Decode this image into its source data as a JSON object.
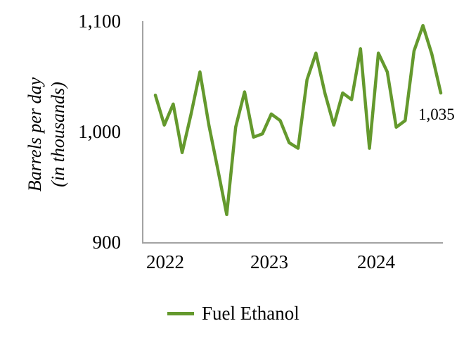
{
  "chart": {
    "y_axis": {
      "title_line1": "Barrels per day",
      "title_line2": "(in thousands)",
      "ticks": [
        "1,100",
        "1,000",
        "900"
      ]
    },
    "x_axis": {
      "ticks": [
        "2022",
        "2023",
        "2024"
      ]
    },
    "legend": {
      "label": "Fuel Ethanol"
    },
    "end_label": "1,035"
  },
  "chart_data": {
    "type": "line",
    "title": "",
    "xlabel": "",
    "ylabel": "Barrels per day (in thousands)",
    "ylim": [
      900,
      1100
    ],
    "yticks": [
      900,
      1000,
      1100
    ],
    "x_tick_labels": [
      "2022",
      "2023",
      "2024"
    ],
    "grid": false,
    "legend_position": "bottom",
    "axis_color": "#a3a3a3",
    "series": [
      {
        "name": "Fuel Ethanol",
        "color": "#64992d",
        "x": [
          "2022-01",
          "2022-02",
          "2022-03",
          "2022-04",
          "2022-05",
          "2022-06",
          "2022-07",
          "2022-08",
          "2022-09",
          "2022-10",
          "2022-11",
          "2022-12",
          "2023-01",
          "2023-02",
          "2023-03",
          "2023-04",
          "2023-05",
          "2023-06",
          "2023-07",
          "2023-08",
          "2023-09",
          "2023-10",
          "2023-11",
          "2023-12",
          "2024-01",
          "2024-02",
          "2024-03",
          "2024-04",
          "2024-05",
          "2024-06",
          "2024-07",
          "2024-08",
          "2024-09"
        ],
        "values": [
          1033,
          1006,
          1025,
          981,
          1016,
          1054,
          1006,
          966,
          925,
          1004,
          1036,
          995,
          998,
          1016,
          1010,
          990,
          985,
          1047,
          1071,
          1035,
          1006,
          1035,
          1029,
          1075,
          985,
          1071,
          1054,
          1004,
          1010,
          1073,
          1096,
          1070,
          1035
        ]
      }
    ],
    "annotations": [
      {
        "text": "1,035",
        "x": "2024-09",
        "y": 1035
      }
    ]
  }
}
